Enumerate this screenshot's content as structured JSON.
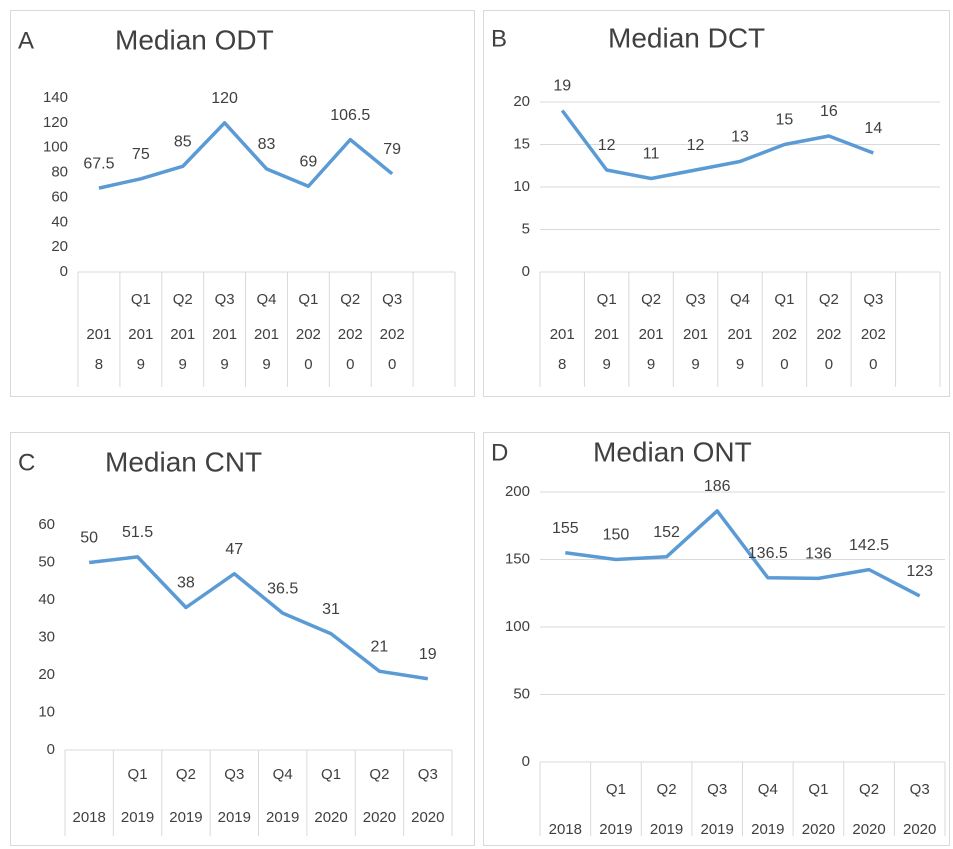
{
  "chart_data": [
    {
      "type": "line",
      "panel_label": "A",
      "title": "Median ODT",
      "category_quarters": [
        null,
        "Q1",
        "Q2",
        "Q3",
        "Q4",
        "Q1",
        "Q2",
        "Q3",
        null
      ],
      "category_years": [
        "2018",
        "2019",
        "2019",
        "2019",
        "2019",
        "2020",
        "2020",
        "2020",
        null
      ],
      "values": [
        67.5,
        75,
        85,
        120,
        83,
        69,
        106.5,
        79,
        null
      ],
      "color": "#5b9bd5",
      "ylim": [
        0,
        140
      ],
      "yticks": [
        0,
        20,
        40,
        60,
        80,
        100,
        120,
        140
      ],
      "grid": false
    },
    {
      "type": "line",
      "panel_label": "B",
      "title": "Median DCT",
      "category_quarters": [
        null,
        "Q1",
        "Q2",
        "Q3",
        "Q4",
        "Q1",
        "Q2",
        "Q3",
        null
      ],
      "category_years": [
        "2018",
        "2019",
        "2019",
        "2019",
        "2019",
        "2020",
        "2020",
        "2020",
        null
      ],
      "values": [
        19,
        12,
        11,
        12,
        13,
        15,
        16,
        14,
        null
      ],
      "color": "#5b9bd5",
      "ylim": [
        0,
        20
      ],
      "yticks": [
        0,
        5,
        10,
        15,
        20
      ],
      "grid": true
    },
    {
      "type": "line",
      "panel_label": "C",
      "title": "Median CNT",
      "category_quarters": [
        null,
        "Q1",
        "Q2",
        "Q3",
        "Q4",
        "Q1",
        "Q2",
        "Q3"
      ],
      "category_years": [
        "2018",
        "2019",
        "2019",
        "2019",
        "2019",
        "2020",
        "2020",
        "2020"
      ],
      "values": [
        50,
        51.5,
        38,
        47,
        36.5,
        31,
        21,
        19
      ],
      "color": "#5b9bd5",
      "ylim": [
        0,
        60
      ],
      "yticks": [
        0,
        10,
        20,
        30,
        40,
        50,
        60
      ],
      "grid": false
    },
    {
      "type": "line",
      "panel_label": "D",
      "title": "Median ONT",
      "category_quarters": [
        null,
        "Q1",
        "Q2",
        "Q3",
        "Q4",
        "Q1",
        "Q2",
        "Q3"
      ],
      "category_years": [
        "2018",
        "2019",
        "2019",
        "2019",
        "2019",
        "2020",
        "2020",
        "2020"
      ],
      "values": [
        155,
        150,
        152,
        186,
        136.5,
        136,
        142.5,
        123
      ],
      "color": "#5b9bd5",
      "ylim": [
        0,
        200
      ],
      "yticks": [
        0,
        50,
        100,
        150,
        200
      ],
      "grid": true
    }
  ]
}
